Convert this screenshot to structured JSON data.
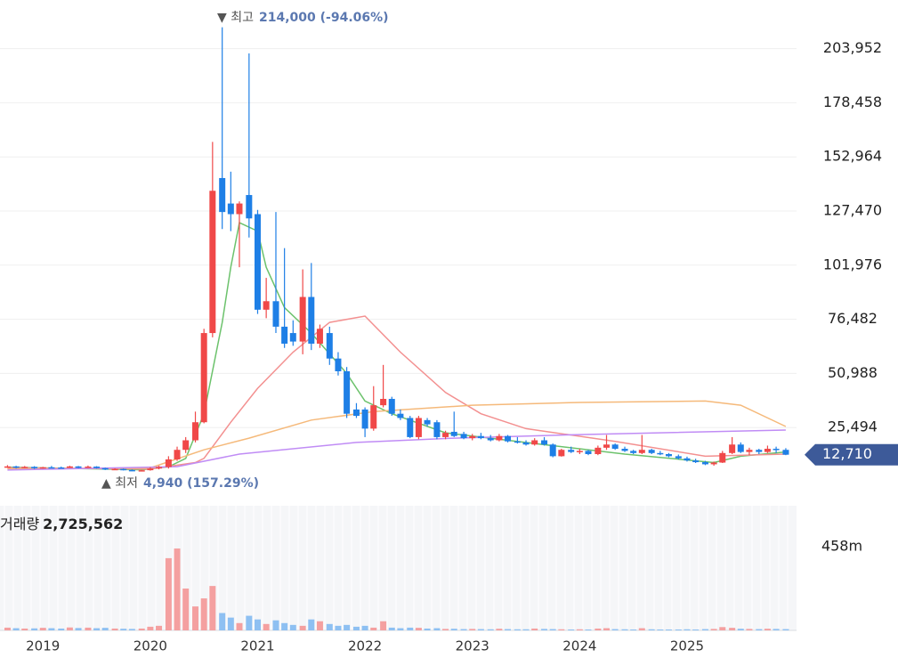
{
  "chart_data": {
    "type": "candlestick",
    "x": [
      2018.67,
      2018.75,
      2018.83,
      2018.92,
      2019,
      2019.08,
      2019.17,
      2019.25,
      2019.33,
      2019.42,
      2019.5,
      2019.58,
      2019.67,
      2019.75,
      2019.83,
      2019.92,
      2020,
      2020.08,
      2020.17,
      2020.25,
      2020.33,
      2020.42,
      2020.5,
      2020.58,
      2020.67,
      2020.75,
      2020.83,
      2020.92,
      2021,
      2021.08,
      2021.17,
      2021.25,
      2021.33,
      2021.42,
      2021.5,
      2021.58,
      2021.67,
      2021.75,
      2021.83,
      2021.92,
      2022,
      2022.08,
      2022.17,
      2022.25,
      2022.33,
      2022.42,
      2022.5,
      2022.58,
      2022.67,
      2022.75,
      2022.83,
      2022.92,
      2023,
      2023.08,
      2023.17,
      2023.25,
      2023.33,
      2023.42,
      2023.5,
      2023.58,
      2023.67,
      2023.75,
      2023.83,
      2023.92,
      2024,
      2024.08,
      2024.17,
      2024.25,
      2024.33,
      2024.42,
      2024.5,
      2024.58,
      2024.67,
      2024.75,
      2024.83,
      2024.92,
      2025,
      2025.08,
      2025.17,
      2025.25,
      2025.33,
      2025.42,
      2025.5,
      2025.58,
      2025.67,
      2025.75,
      2025.83,
      2025.92
    ],
    "open": [
      7000,
      7200,
      6600,
      7000,
      6300,
      6800,
      6700,
      6500,
      7200,
      6500,
      7100,
      6400,
      5700,
      6000,
      5500,
      5200,
      5400,
      6200,
      6900,
      10500,
      15000,
      19500,
      28000,
      70000,
      143000,
      131000,
      126000,
      135000,
      126000,
      81000,
      85000,
      73000,
      70000,
      66000,
      87000,
      65000,
      70000,
      58000,
      52000,
      34000,
      34000,
      25000,
      36000,
      39000,
      32000,
      30000,
      21000,
      29000,
      28000,
      21000,
      23500,
      22500,
      20500,
      21500,
      20500,
      19500,
      21500,
      19000,
      18500,
      17500,
      19500,
      17500,
      12000,
      15000,
      14000,
      14500,
      13000,
      16000,
      17500,
      15500,
      14500,
      13500,
      15000,
      13500,
      13000,
      12000,
      11000,
      10000,
      9200,
      8200,
      9000,
      13500,
      17500,
      14000,
      15000,
      14000,
      15500,
      15000
    ],
    "high": [
      7800,
      7500,
      7400,
      7300,
      7000,
      7400,
      7100,
      7500,
      7400,
      7600,
      7300,
      6600,
      6300,
      6200,
      5800,
      5600,
      6800,
      7500,
      12000,
      16500,
      21000,
      33000,
      72000,
      160000,
      214000,
      146000,
      132000,
      201700,
      128000,
      96000,
      127000,
      110000,
      76000,
      100000,
      103000,
      74000,
      73000,
      61000,
      54000,
      37000,
      35000,
      45000,
      55000,
      40000,
      34000,
      31000,
      31000,
      30000,
      29000,
      24000,
      33000,
      23500,
      22500,
      23000,
      22000,
      22500,
      22000,
      21000,
      19500,
      20500,
      21000,
      18000,
      15500,
      16500,
      15500,
      15000,
      17000,
      22000,
      18000,
      16500,
      15000,
      22000,
      15500,
      14500,
      13500,
      12800,
      11800,
      10800,
      9800,
      9500,
      14500,
      21000,
      18500,
      16000,
      15500,
      17000,
      16500,
      15800
    ],
    "low": [
      6500,
      6200,
      6300,
      6000,
      6100,
      6500,
      6300,
      6400,
      6300,
      6400,
      6200,
      5500,
      5500,
      5300,
      5000,
      4940,
      5200,
      5800,
      6200,
      9800,
      13500,
      18500,
      27500,
      68000,
      119000,
      118000,
      101000,
      115000,
      79000,
      77000,
      70000,
      63000,
      64000,
      60000,
      62000,
      63000,
      55000,
      50000,
      30000,
      30000,
      21000,
      24000,
      35000,
      31000,
      29000,
      20500,
      20000,
      26000,
      20000,
      20000,
      21000,
      20000,
      19500,
      20000,
      19000,
      19000,
      18500,
      18000,
      17000,
      17000,
      17000,
      11500,
      11800,
      13500,
      13000,
      12500,
      12500,
      15000,
      15000,
      14000,
      13000,
      13000,
      13000,
      12500,
      11500,
      10500,
      9500,
      8800,
      7800,
      7500,
      8800,
      13000,
      13500,
      12500,
      13000,
      13500,
      13500,
      12500
    ],
    "close": [
      7200,
      6600,
      7000,
      6300,
      6800,
      6700,
      6500,
      7200,
      6500,
      7100,
      6400,
      5700,
      6000,
      5500,
      5200,
      5400,
      6200,
      6900,
      10500,
      15000,
      19500,
      28000,
      70000,
      137000,
      127000,
      126000,
      131000,
      124000,
      81000,
      85000,
      73000,
      65000,
      66000,
      87000,
      65000,
      72000,
      58000,
      52000,
      32000,
      31000,
      25000,
      36000,
      39000,
      32000,
      30000,
      21000,
      30000,
      27000,
      21000,
      23000,
      21500,
      20500,
      21500,
      20500,
      19500,
      21500,
      19000,
      18500,
      17500,
      19500,
      17500,
      12000,
      15000,
      14000,
      14500,
      13000,
      16000,
      17500,
      15500,
      14500,
      13500,
      15000,
      13500,
      13000,
      12000,
      11000,
      10000,
      9200,
      8200,
      9000,
      13500,
      17500,
      14000,
      15000,
      14000,
      15500,
      15000,
      12710
    ],
    "volume": [
      15000000,
      12000000,
      10000000,
      11000000,
      14000000,
      12000000,
      10000000,
      16000000,
      13000000,
      15000000,
      12000000,
      14000000,
      10000000,
      9000000,
      8000000,
      10000000,
      20000000,
      25000000,
      395000000,
      448000000,
      229000000,
      131000000,
      175000000,
      243000000,
      95000000,
      70000000,
      40000000,
      80000000,
      60000000,
      35000000,
      55000000,
      40000000,
      30000000,
      25000000,
      60000000,
      50000000,
      35000000,
      25000000,
      30000000,
      20000000,
      25000000,
      15000000,
      50000000,
      15000000,
      12000000,
      15000000,
      14000000,
      10000000,
      12000000,
      8000000,
      9000000,
      7000000,
      8000000,
      7000000,
      6000000,
      9000000,
      7000000,
      6000000,
      6000000,
      10000000,
      8000000,
      7000000,
      6000000,
      5000000,
      6000000,
      5000000,
      10000000,
      12000000,
      7000000,
      6000000,
      5000000,
      12000000,
      6000000,
      5000000,
      5000000,
      5000000,
      6000000,
      5000000,
      7000000,
      8000000,
      18000000,
      14000000,
      9000000,
      8000000,
      7000000,
      9000000,
      8000000,
      7000000
    ],
    "up_color": "#f04848",
    "down_color": "#1e7fe6",
    "volume_up_color": "#f4a0a0",
    "volume_down_color": "#8ec0f2",
    "moving_averages": [
      {
        "color": "#6cc26c",
        "x": [
          2018.67,
          2019.92,
          2020.17,
          2020.33,
          2020.5,
          2020.67,
          2020.75,
          2020.83,
          2021,
          2021.08,
          2021.25,
          2021.5,
          2021.83,
          2022,
          2022.25,
          2022.75,
          2023.58,
          2024.42,
          2025.25,
          2025.5,
          2025.92
        ],
        "values": [
          6800,
          5600,
          7000,
          11000,
          32000,
          75000,
          101000,
          122000,
          118000,
          101000,
          82000,
          70000,
          51000,
          38000,
          32000,
          23000,
          18000,
          13000,
          9000,
          12000,
          14000
        ]
      },
      {
        "color": "#f39090",
        "x": [
          2018.67,
          2020,
          2020.42,
          2020.5,
          2020.75,
          2021,
          2021.33,
          2021.67,
          2022,
          2022.33,
          2022.75,
          2023.08,
          2023.5,
          2024.33,
          2025.17,
          2025.92
        ],
        "values": [
          6500,
          6000,
          9000,
          11000,
          28000,
          44000,
          61000,
          75000,
          78000,
          61000,
          42000,
          32000,
          25000,
          19000,
          12000,
          13000
        ]
      },
      {
        "color": "#f5b97a",
        "x": [
          2018.67,
          2020,
          2020.5,
          2020.92,
          2021.5,
          2022.08,
          2023,
          2024,
          2025.17,
          2025.5,
          2025.92
        ],
        "values": [
          6000,
          6500,
          15000,
          20500,
          29000,
          33000,
          36000,
          37300,
          38000,
          36000,
          26000
        ]
      },
      {
        "color": "#c08cf5",
        "x": [
          2018.67,
          2020.25,
          2020.83,
          2021.92,
          2022.83,
          2024,
          2025.92
        ],
        "values": [
          5500,
          7100,
          13000,
          18500,
          20500,
          22200,
          24300
        ]
      }
    ],
    "xlim": [
      2018.6,
      2026.02
    ],
    "xticks": [
      2019,
      2020,
      2021,
      2022,
      2023,
      2024,
      2025
    ],
    "ylim": [
      0,
      226850
    ],
    "yticks": [
      {
        "value": 25494,
        "label": "25,494"
      },
      {
        "value": 50988,
        "label": "50,988"
      },
      {
        "value": 76482,
        "label": "76,482"
      },
      {
        "value": 101976,
        "label": "101,976"
      },
      {
        "value": 127470,
        "label": "127,470"
      },
      {
        "value": 152964,
        "label": "152,964"
      },
      {
        "value": 178458,
        "label": "178,458"
      },
      {
        "value": 203952,
        "label": "203,952"
      }
    ],
    "volume_ylim": [
      0,
      682000000
    ],
    "volume_yticks": [
      {
        "value": 458000000,
        "label": "458m"
      }
    ],
    "grid": true,
    "high_marker": "▼ 최고",
    "high_text": "214,000 (-94.06%)",
    "low_marker": "▲ 최저",
    "low_text": "4,940 (157.29%)",
    "last_price": {
      "value": 12710,
      "label": "12,710"
    },
    "volume_title": "거래량",
    "volume_current": {
      "value": 2725562,
      "label": "2,725,562"
    }
  }
}
